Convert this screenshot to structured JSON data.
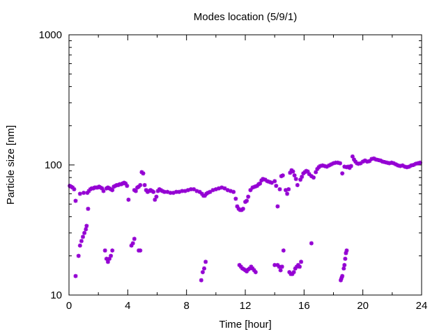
{
  "chart_data": {
    "type": "scatter",
    "title": "Modes location (5/9/1)",
    "xlabel": "Time [hour]",
    "ylabel": "Particle size [nm]",
    "xlim": [
      0,
      24
    ],
    "ylim": [
      10,
      1000
    ],
    "yscale": "log",
    "grid": false,
    "legend": "none",
    "x_ticks": [
      "0",
      "4",
      "8",
      "12",
      "16",
      "20",
      "24"
    ],
    "y_ticks": [
      "10",
      "100",
      "1000"
    ],
    "marker_color": "#9400d3",
    "series": [
      {
        "points": [
          [
            0.05,
            69
          ],
          [
            0.15,
            68
          ],
          [
            0.25,
            67
          ],
          [
            0.35,
            65
          ],
          [
            0.45,
            53
          ],
          [
            0.75,
            60
          ],
          [
            1.0,
            61
          ],
          [
            1.25,
            61
          ],
          [
            1.35,
            63
          ],
          [
            1.45,
            65
          ],
          [
            1.55,
            66
          ],
          [
            1.65,
            66
          ],
          [
            1.75,
            67
          ],
          [
            1.85,
            67
          ],
          [
            1.95,
            67
          ],
          [
            2.05,
            68
          ],
          [
            2.15,
            67
          ],
          [
            2.25,
            66
          ],
          [
            2.35,
            63
          ],
          [
            2.55,
            66
          ],
          [
            2.65,
            67
          ],
          [
            2.75,
            66
          ],
          [
            2.85,
            65
          ],
          [
            2.95,
            64
          ],
          [
            3.05,
            68
          ],
          [
            3.15,
            69
          ],
          [
            3.25,
            70
          ],
          [
            3.35,
            70
          ],
          [
            3.45,
            71
          ],
          [
            3.55,
            71
          ],
          [
            3.65,
            72
          ],
          [
            3.75,
            73
          ],
          [
            3.85,
            72
          ],
          [
            3.95,
            69
          ],
          [
            4.05,
            54
          ],
          [
            4.45,
            64
          ],
          [
            4.55,
            63
          ],
          [
            4.65,
            67
          ],
          [
            4.75,
            68
          ],
          [
            4.85,
            70
          ],
          [
            4.95,
            88
          ],
          [
            5.05,
            86
          ],
          [
            5.15,
            70
          ],
          [
            5.25,
            64
          ],
          [
            5.35,
            62
          ],
          [
            5.45,
            63
          ],
          [
            5.55,
            64
          ],
          [
            5.65,
            63
          ],
          [
            5.75,
            62
          ],
          [
            5.85,
            54
          ],
          [
            5.95,
            57
          ],
          [
            6.05,
            63
          ],
          [
            6.15,
            65
          ],
          [
            6.25,
            64
          ],
          [
            6.35,
            63
          ],
          [
            6.5,
            62
          ],
          [
            6.7,
            62
          ],
          [
            6.9,
            61
          ],
          [
            7.1,
            61
          ],
          [
            7.3,
            62
          ],
          [
            7.5,
            62
          ],
          [
            7.7,
            63
          ],
          [
            7.9,
            63
          ],
          [
            8.1,
            64
          ],
          [
            8.3,
            65
          ],
          [
            8.5,
            65
          ],
          [
            8.7,
            63
          ],
          [
            8.9,
            62
          ],
          [
            9.05,
            60
          ],
          [
            9.15,
            58
          ],
          [
            9.25,
            58
          ],
          [
            9.35,
            60
          ],
          [
            9.45,
            61
          ],
          [
            9.6,
            62
          ],
          [
            9.8,
            64
          ],
          [
            10.0,
            65
          ],
          [
            10.2,
            66
          ],
          [
            10.4,
            67
          ],
          [
            10.6,
            66
          ],
          [
            10.8,
            64
          ],
          [
            11.0,
            63
          ],
          [
            11.2,
            62
          ],
          [
            11.35,
            55
          ],
          [
            11.45,
            48
          ],
          [
            11.55,
            46
          ],
          [
            11.65,
            45
          ],
          [
            11.75,
            45
          ],
          [
            11.85,
            46
          ],
          [
            12.0,
            52
          ],
          [
            12.1,
            53
          ],
          [
            12.2,
            57
          ],
          [
            12.35,
            64
          ],
          [
            12.5,
            67
          ],
          [
            12.65,
            68
          ],
          [
            12.8,
            69
          ],
          [
            12.9,
            71
          ],
          [
            13.0,
            72
          ],
          [
            13.1,
            76
          ],
          [
            13.2,
            78
          ],
          [
            13.35,
            77
          ],
          [
            13.5,
            75
          ],
          [
            13.65,
            74
          ],
          [
            13.8,
            73
          ],
          [
            14.0,
            75
          ],
          [
            14.1,
            69
          ],
          [
            14.2,
            48
          ],
          [
            14.35,
            65
          ],
          [
            14.45,
            82
          ],
          [
            14.55,
            83
          ],
          [
            14.75,
            64
          ],
          [
            14.85,
            60
          ],
          [
            14.95,
            65
          ],
          [
            15.05,
            87
          ],
          [
            15.15,
            91
          ],
          [
            15.25,
            89
          ],
          [
            15.35,
            83
          ],
          [
            15.45,
            78
          ],
          [
            15.55,
            70
          ],
          [
            15.75,
            77
          ],
          [
            15.85,
            81
          ],
          [
            15.95,
            86
          ],
          [
            16.05,
            88
          ],
          [
            16.15,
            90
          ],
          [
            16.25,
            89
          ],
          [
            16.35,
            85
          ],
          [
            16.5,
            82
          ],
          [
            16.65,
            80
          ],
          [
            16.8,
            88
          ],
          [
            16.9,
            93
          ],
          [
            17.0,
            96
          ],
          [
            17.1,
            98
          ],
          [
            17.25,
            99
          ],
          [
            17.4,
            98
          ],
          [
            17.55,
            97
          ],
          [
            17.7,
            99
          ],
          [
            17.85,
            101
          ],
          [
            18.0,
            103
          ],
          [
            18.15,
            104
          ],
          [
            18.3,
            104
          ],
          [
            18.45,
            103
          ],
          [
            18.6,
            86
          ],
          [
            18.75,
            97
          ],
          [
            18.9,
            96
          ],
          [
            19.0,
            97
          ],
          [
            19.1,
            95
          ],
          [
            19.2,
            98
          ],
          [
            19.3,
            116
          ],
          [
            19.4,
            110
          ],
          [
            19.5,
            106
          ],
          [
            19.6,
            103
          ],
          [
            19.7,
            102
          ],
          [
            19.85,
            103
          ],
          [
            20.0,
            106
          ],
          [
            20.15,
            108
          ],
          [
            20.3,
            106
          ],
          [
            20.45,
            107
          ],
          [
            20.6,
            111
          ],
          [
            20.75,
            112
          ],
          [
            20.9,
            110
          ],
          [
            21.05,
            109
          ],
          [
            21.2,
            108
          ],
          [
            21.35,
            106
          ],
          [
            21.5,
            105
          ],
          [
            21.65,
            104
          ],
          [
            21.8,
            103
          ],
          [
            21.95,
            104
          ],
          [
            22.1,
            103
          ],
          [
            22.25,
            101
          ],
          [
            22.4,
            99
          ],
          [
            22.55,
            98
          ],
          [
            22.7,
            99
          ],
          [
            22.85,
            97
          ],
          [
            23.0,
            96
          ],
          [
            23.15,
            97
          ],
          [
            23.3,
            99
          ],
          [
            23.45,
            100
          ],
          [
            23.6,
            102
          ],
          [
            23.75,
            103
          ],
          [
            23.9,
            104
          ],
          [
            0.45,
            14
          ],
          [
            0.65,
            20
          ],
          [
            0.75,
            24
          ],
          [
            0.85,
            26
          ],
          [
            0.95,
            28
          ],
          [
            1.05,
            30
          ],
          [
            1.15,
            32
          ],
          [
            1.2,
            34
          ],
          [
            1.3,
            46
          ],
          [
            2.45,
            22
          ],
          [
            2.55,
            19
          ],
          [
            2.65,
            18
          ],
          [
            2.75,
            19
          ],
          [
            2.85,
            20
          ],
          [
            2.95,
            22
          ],
          [
            4.25,
            24
          ],
          [
            4.35,
            25
          ],
          [
            4.45,
            27
          ],
          [
            4.75,
            22
          ],
          [
            4.85,
            22
          ],
          [
            9.0,
            13
          ],
          [
            9.1,
            15
          ],
          [
            9.2,
            16
          ],
          [
            9.3,
            18
          ],
          [
            11.6,
            17
          ],
          [
            11.7,
            16.5
          ],
          [
            11.8,
            16
          ],
          [
            11.9,
            15.8
          ],
          [
            12.0,
            15.5
          ],
          [
            12.1,
            15.2
          ],
          [
            12.2,
            15.7
          ],
          [
            12.3,
            16
          ],
          [
            12.4,
            16.5
          ],
          [
            12.5,
            16
          ],
          [
            12.6,
            15.5
          ],
          [
            12.7,
            15
          ],
          [
            14.0,
            17
          ],
          [
            14.2,
            17
          ],
          [
            14.3,
            16.5
          ],
          [
            14.4,
            15.5
          ],
          [
            14.5,
            16.5
          ],
          [
            14.6,
            22
          ],
          [
            15.0,
            15
          ],
          [
            15.1,
            14.5
          ],
          [
            15.2,
            14.5
          ],
          [
            15.3,
            15
          ],
          [
            15.4,
            16
          ],
          [
            15.5,
            16.5
          ],
          [
            15.6,
            17
          ],
          [
            15.7,
            16.5
          ],
          [
            15.8,
            18
          ],
          [
            16.5,
            25
          ],
          [
            18.5,
            13
          ],
          [
            18.55,
            13.5
          ],
          [
            18.6,
            14
          ],
          [
            18.7,
            16
          ],
          [
            18.75,
            17
          ],
          [
            18.8,
            19
          ],
          [
            18.85,
            21
          ],
          [
            18.9,
            22
          ]
        ]
      }
    ]
  }
}
